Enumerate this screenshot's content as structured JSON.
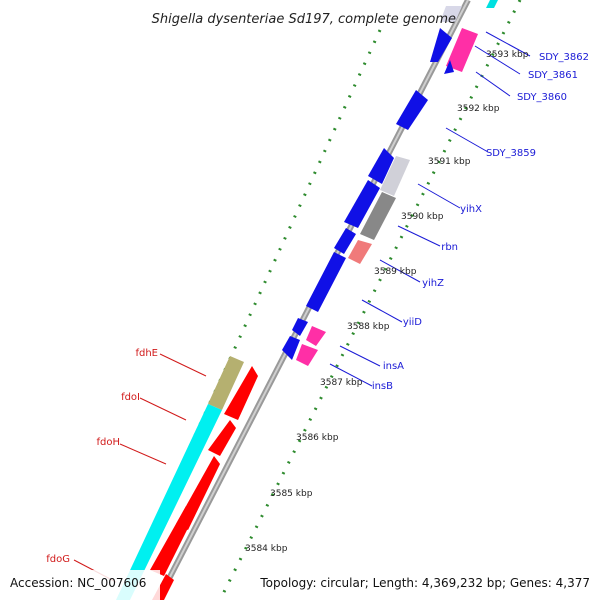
{
  "title": "Shigella dysenteriae Sd197, complete genome",
  "footer": {
    "accession": "Accession: NC_007606",
    "summary": "Topology: circular; Length: 4,369,232 bp; Genes: 4,377"
  },
  "ticks": [
    {
      "label": "3593 kbp",
      "kbp": 3593
    },
    {
      "label": "3592 kbp",
      "kbp": 3592
    },
    {
      "label": "3591 kbp",
      "kbp": 3591
    },
    {
      "label": "3590 kbp",
      "kbp": 3590
    },
    {
      "label": "3589 kbp",
      "kbp": 3589
    },
    {
      "label": "3588 kbp",
      "kbp": 3588
    },
    {
      "label": "3587 kbp",
      "kbp": 3587
    },
    {
      "label": "3586 kbp",
      "kbp": 3586
    },
    {
      "label": "3585 kbp",
      "kbp": 3585
    },
    {
      "label": "3584 kbp",
      "kbp": 3584
    }
  ],
  "gene_labels": {
    "right": [
      "SDY_3862",
      "SDY_3861",
      "SDY_3860",
      "SDY_3859",
      "yihX",
      "rbn",
      "yihZ",
      "yiiD",
      "insA",
      "insB"
    ],
    "left": [
      "fdhE",
      "fdoI",
      "fdoH",
      "fdoG"
    ]
  },
  "colors": {
    "cds": "#1010e6",
    "insertion": "#ff2fa6",
    "insertion_light": "#f07a7a",
    "fdo_cds": "#ff0000",
    "fdo_operon": "#00f0f0",
    "fdhE": "#b5b070",
    "backbone": "#999999",
    "gc_dots": "#2e8b2e",
    "label_blue": "#1a1ad6",
    "label_red": "#d11a1a"
  }
}
